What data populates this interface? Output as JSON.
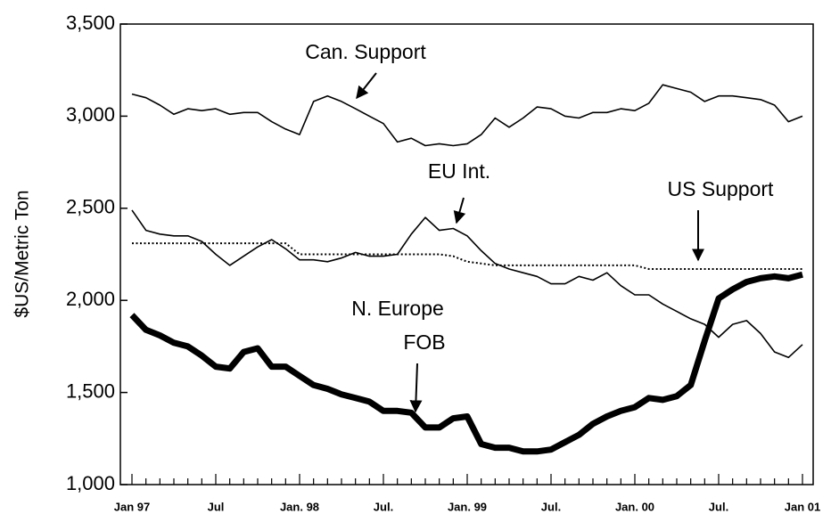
{
  "chart_data": {
    "type": "line",
    "y_label": "$US/Metric Ton",
    "categories": [
      "Jan 97",
      null,
      null,
      null,
      null,
      null,
      "Jul",
      null,
      null,
      null,
      null,
      null,
      "Jan. 98",
      null,
      null,
      null,
      null,
      null,
      "Jul.",
      null,
      null,
      null,
      null,
      null,
      "Jan. 99",
      null,
      null,
      null,
      null,
      null,
      "Jul.",
      null,
      null,
      null,
      null,
      null,
      "Jan. 00",
      null,
      null,
      null,
      null,
      null,
      "Jul.",
      null,
      null,
      null,
      null,
      null,
      "Jan 01"
    ],
    "ylim": [
      1000,
      3500
    ],
    "yticks": [
      {
        "value": 1000,
        "label": "1,000"
      },
      {
        "value": 1500,
        "label": "1,500"
      },
      {
        "value": 2000,
        "label": "2,000"
      },
      {
        "value": 2500,
        "label": "2,500"
      },
      {
        "value": 3000,
        "label": "3,000"
      },
      {
        "value": 3500,
        "label": "3,500"
      }
    ],
    "series": [
      {
        "color": "#000000",
        "style": "thin",
        "values": [
          3120,
          3100,
          3060,
          3010,
          3040,
          3030,
          3040,
          3010,
          3020,
          3020,
          2970,
          2930,
          2900,
          3080,
          3110,
          3080,
          3040,
          3000,
          2960,
          2860,
          2880,
          2840,
          2850,
          2840,
          2850,
          2900,
          2990,
          2940,
          2990,
          3050,
          3040,
          3000,
          2990,
          3020,
          3020,
          3040,
          3030,
          3070,
          3170,
          3150,
          3130,
          3080,
          3110,
          3110,
          3100,
          3090,
          3060,
          2970,
          3000
        ]
      },
      {
        "color": "#000000",
        "style": "thin",
        "values": [
          2490,
          2380,
          2360,
          2350,
          2350,
          2320,
          2250,
          2190,
          2240,
          2290,
          2330,
          2280,
          2220,
          2220,
          2210,
          2230,
          2260,
          2240,
          2240,
          2250,
          2360,
          2450,
          2380,
          2390,
          2350,
          2270,
          2200,
          2170,
          2150,
          2130,
          2090,
          2090,
          2130,
          2110,
          2150,
          2080,
          2030,
          2030,
          1980,
          1940,
          1900,
          1870,
          1800,
          1870,
          1890,
          1820,
          1720,
          1690,
          1760
        ]
      },
      {
        "color": "#000000",
        "style": "dotted",
        "values": [
          2310,
          2310,
          2310,
          2310,
          2310,
          2310,
          2310,
          2310,
          2310,
          2310,
          2310,
          2310,
          2250,
          2250,
          2250,
          2250,
          2250,
          2250,
          2250,
          2250,
          2250,
          2250,
          2250,
          2240,
          2210,
          2200,
          2190,
          2190,
          2190,
          2190,
          2190,
          2190,
          2190,
          2190,
          2190,
          2190,
          2190,
          2170,
          2170,
          2170,
          2170,
          2170,
          2170,
          2170,
          2170,
          2170,
          2170,
          2170,
          2170
        ]
      },
      {
        "color": "#000000",
        "style": "thick",
        "values": [
          1920,
          1840,
          1810,
          1770,
          1750,
          1700,
          1640,
          1630,
          1720,
          1740,
          1640,
          1640,
          1590,
          1540,
          1520,
          1490,
          1470,
          1450,
          1400,
          1400,
          1390,
          1310,
          1310,
          1360,
          1370,
          1220,
          1200,
          1200,
          1180,
          1180,
          1190,
          1230,
          1270,
          1330,
          1370,
          1400,
          1420,
          1470,
          1460,
          1480,
          1540,
          1780,
          2010,
          2060,
          2100,
          2120,
          2130,
          2120,
          2140
        ]
      }
    ],
    "annotations": [
      "Can. Support",
      "EU Int.",
      "US Support",
      "N. Europe",
      "FOB"
    ]
  }
}
